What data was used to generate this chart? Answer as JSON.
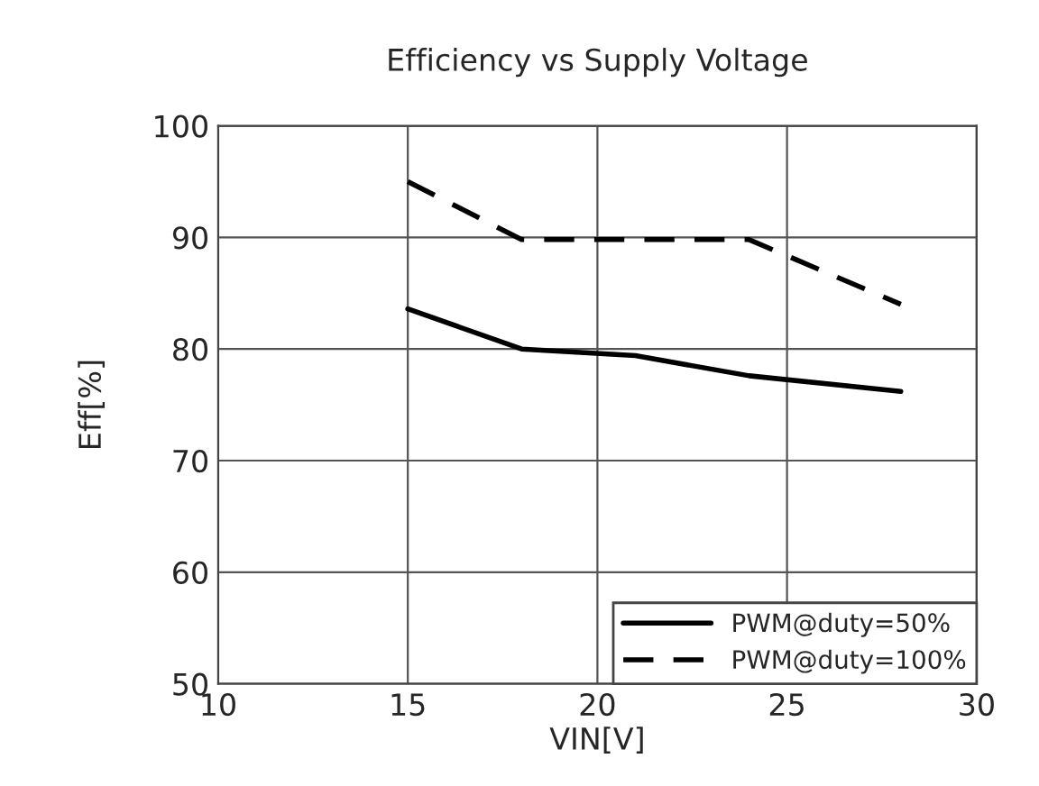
{
  "chart_data": {
    "type": "line",
    "title": "Efficiency vs Supply Voltage",
    "xlabel": "VIN[V]",
    "ylabel": "Eff[%]",
    "xlim": [
      10,
      30
    ],
    "xticks": [
      10,
      15,
      20,
      25,
      30
    ],
    "ylim": [
      50,
      100
    ],
    "yticks": [
      50,
      60,
      70,
      80,
      90,
      100
    ],
    "grid": true,
    "legend": "bottom right",
    "marker": "none",
    "series": [
      {
        "name": "PWM@duty=50%",
        "color": "#000000",
        "line_style": "solid",
        "x": [
          15,
          18,
          21,
          24,
          28
        ],
        "values": [
          83.6,
          80,
          79.4,
          77.6,
          76.2
        ]
      },
      {
        "name": "PWM@duty=100%",
        "color": "#000000",
        "line_style": "dashed",
        "x": [
          15,
          18,
          21,
          24,
          28
        ],
        "values": [
          95,
          89.8,
          89.8,
          89.8,
          84
        ]
      }
    ]
  }
}
